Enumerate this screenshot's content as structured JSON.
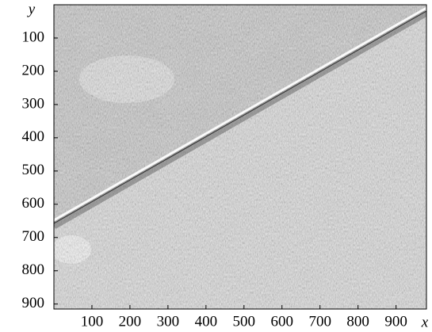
{
  "chart_data": {
    "type": "image",
    "x_label": "x",
    "y_label": "y",
    "xlim": [
      0,
      980
    ],
    "ylim": [
      0,
      915
    ],
    "y_inverted": true,
    "xticks": [
      100,
      200,
      300,
      400,
      500,
      600,
      700,
      800,
      900
    ],
    "yticks": [
      100,
      200,
      300,
      400,
      500,
      600,
      700,
      800,
      900
    ]
  }
}
